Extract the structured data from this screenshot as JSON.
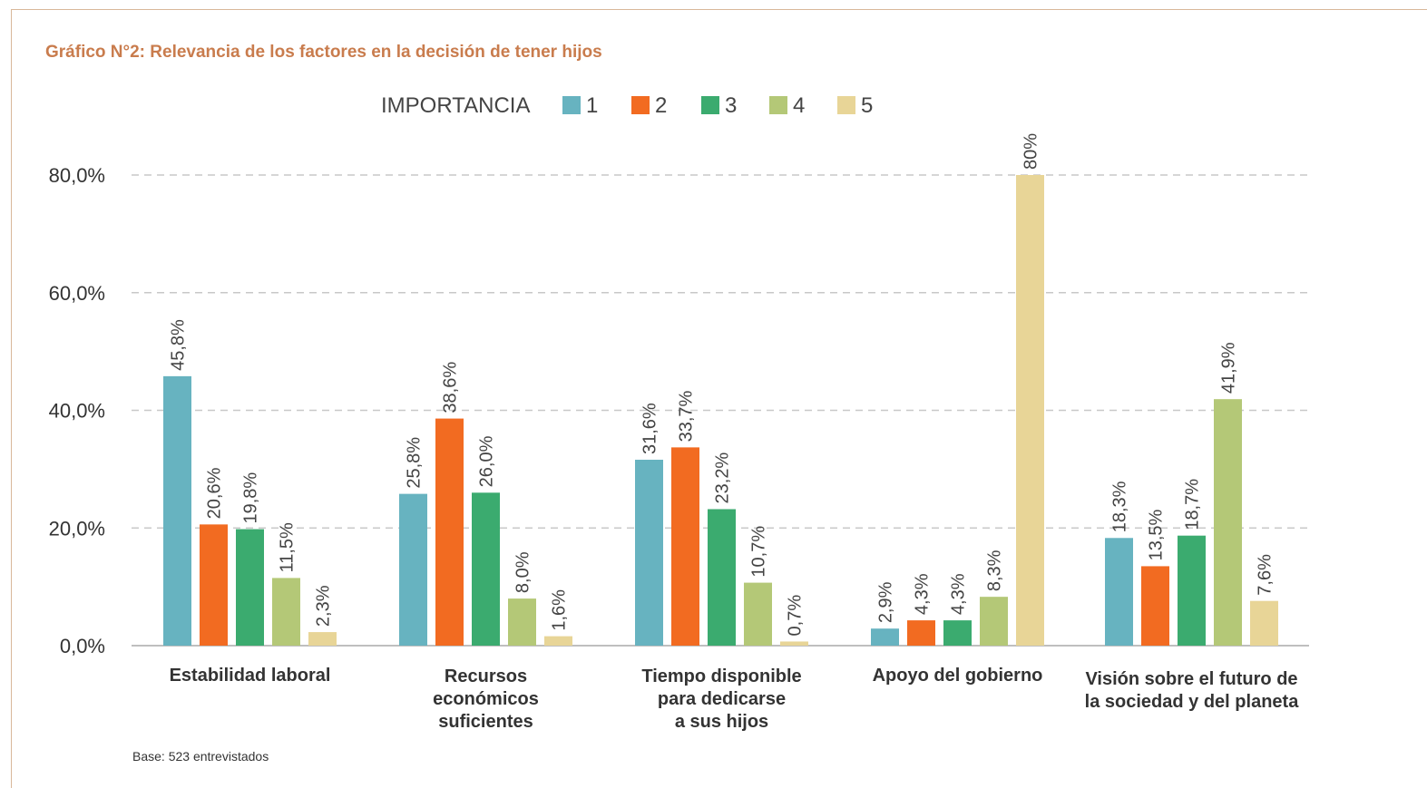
{
  "chart_data": {
    "type": "bar",
    "title": "Gráfico N°2: Relevancia de los factores en la decisión de tener hijos",
    "footnote": "Base: 523 entrevistados",
    "legend": {
      "title": "IMPORTANCIA",
      "placement": "top-center"
    },
    "categories": [
      "Estabilidad laboral",
      "Recursos económicos suficientes",
      "Tiempo disponible para dedicarse a sus hijos",
      "Apoyo del gobierno",
      "Visión sobre el futuro de la sociedad y del planeta"
    ],
    "category_lines": [
      [
        "Estabilidad laboral"
      ],
      [
        "Recursos",
        "económicos",
        "suficientes"
      ],
      [
        "Tiempo disponible",
        "para dedicarse",
        "a sus hijos"
      ],
      [
        "Apoyo del gobierno"
      ],
      [
        "Visión sobre el futuro de",
        "la sociedad y del planeta"
      ]
    ],
    "series": [
      {
        "name": "1",
        "color": "#67b3c0",
        "values": [
          45.8,
          25.8,
          31.6,
          2.9,
          18.3
        ],
        "labels": [
          "45,8%",
          "25,8%",
          "31,6%",
          "2,9%",
          "18,3%"
        ]
      },
      {
        "name": "2",
        "color": "#f26b21",
        "values": [
          20.6,
          38.6,
          33.7,
          4.3,
          13.5
        ],
        "labels": [
          "20,6%",
          "38,6%",
          "33,7%",
          "4,3%",
          "13,5%"
        ]
      },
      {
        "name": "3",
        "color": "#3bab6f",
        "values": [
          19.8,
          26.0,
          23.2,
          4.3,
          18.7
        ],
        "labels": [
          "19,8%",
          "26,0%",
          "23,2%",
          "4,3%",
          "18,7%"
        ]
      },
      {
        "name": "4",
        "color": "#b4c877",
        "values": [
          11.5,
          8.0,
          10.7,
          8.3,
          41.9
        ],
        "labels": [
          "11,5%",
          "8,0%",
          "10,7%",
          "8,3%",
          "41,9%"
        ]
      },
      {
        "name": "5",
        "color": "#e8d597",
        "values": [
          2.3,
          1.6,
          0.7,
          80.0,
          7.6
        ],
        "labels": [
          "2,3%",
          "1,6%",
          "0,7%",
          "80%",
          "7,6%"
        ]
      }
    ],
    "y_ticks": [
      0,
      20,
      40,
      60,
      80
    ],
    "y_tick_labels": [
      "0,0%",
      "20,0%",
      "40,0%",
      "60,0%",
      "80,0%"
    ],
    "ylim": [
      0,
      80
    ],
    "grid": true,
    "xlabel": "",
    "ylabel": ""
  }
}
